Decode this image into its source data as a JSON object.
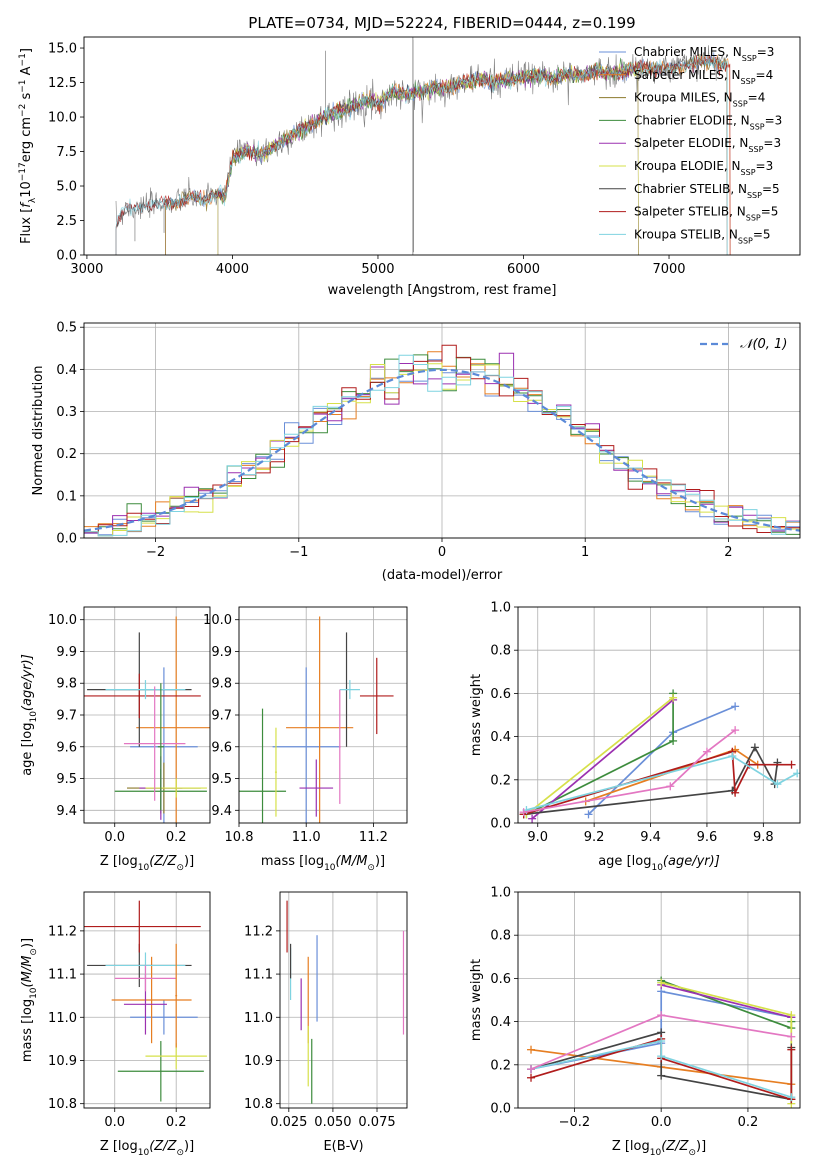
{
  "colors": {
    "Chabrier MILES": "#6a8fd8",
    "Salpeter MILES": "#e67e22",
    "Kroupa MILES": "#8c7a2b",
    "Chabrier ELODIE": "#3d8c3d",
    "Salpeter ELODIE": "#9b30b0",
    "Kroupa ELODIE": "#d6e04a",
    "Chabrier STELIB": "#444444",
    "Salpeter STELIB": "#b01c1c",
    "Kroupa STELIB": "#7fd3e0",
    "pink": "#e377c2",
    "grey": "#7f7f7f",
    "normal": "#5b8ad8"
  },
  "chart_data": [
    {
      "id": "spectrum",
      "type": "line",
      "title": "PLATE=0734, MJD=52224, FIBERID=0444, z=0.199",
      "xlabel": "wavelength [Angstrom, rest frame]",
      "ylabel_parts": [
        "Flux [",
        "f",
        "λ",
        "10",
        "−17",
        "erg cm",
        "−2",
        " s",
        "−1",
        " A",
        "−1",
        "]"
      ],
      "xlim": [
        2980,
        7900
      ],
      "ylim": [
        0,
        15.8
      ],
      "xticks": [
        3000,
        4000,
        5000,
        6000,
        7000
      ],
      "yticks": [
        0.0,
        2.5,
        5.0,
        7.5,
        10.0,
        12.5,
        15.0
      ],
      "legend": {
        "position": "top-right",
        "entries": [
          {
            "name": "Chabrier MILES",
            "nssp": "3"
          },
          {
            "name": "Salpeter MILES",
            "nssp": "4"
          },
          {
            "name": "Kroupa MILES",
            "nssp": "4"
          },
          {
            "name": "Chabrier ELODIE",
            "nssp": "3"
          },
          {
            "name": "Salpeter ELODIE",
            "nssp": "3"
          },
          {
            "name": "Kroupa ELODIE",
            "nssp": "3"
          },
          {
            "name": "Chabrier STELIB",
            "nssp": "5"
          },
          {
            "name": "Salpeter STELIB",
            "nssp": "5"
          },
          {
            "name": "Kroupa STELIB",
            "nssp": "5"
          }
        ]
      },
      "continuum": [
        [
          3200,
          2.2
        ],
        [
          3250,
          3.2
        ],
        [
          3400,
          3.5
        ],
        [
          3500,
          3.8
        ],
        [
          3600,
          3.7
        ],
        [
          3700,
          4.2
        ],
        [
          3800,
          4.0
        ],
        [
          3900,
          4.5
        ],
        [
          3950,
          4.2
        ],
        [
          4000,
          7.0
        ],
        [
          4100,
          7.6
        ],
        [
          4200,
          7.2
        ],
        [
          4300,
          8.0
        ],
        [
          4400,
          8.6
        ],
        [
          4500,
          9.2
        ],
        [
          4600,
          9.8
        ],
        [
          4700,
          10.3
        ],
        [
          4800,
          10.6
        ],
        [
          4900,
          11.2
        ],
        [
          5000,
          11.0
        ],
        [
          5100,
          11.8
        ],
        [
          5200,
          11.6
        ],
        [
          5300,
          11.9
        ],
        [
          5400,
          12.1
        ],
        [
          5500,
          12.2
        ],
        [
          5600,
          12.5
        ],
        [
          5700,
          12.8
        ],
        [
          5800,
          12.5
        ],
        [
          5900,
          12.7
        ],
        [
          6000,
          12.9
        ],
        [
          6100,
          13.0
        ],
        [
          6200,
          12.8
        ],
        [
          6300,
          13.1
        ],
        [
          6400,
          13.0
        ],
        [
          6500,
          13.3
        ],
        [
          6600,
          13.2
        ],
        [
          6700,
          13.4
        ],
        [
          6800,
          13.5
        ],
        [
          6900,
          13.6
        ],
        [
          7000,
          13.4
        ],
        [
          7100,
          13.8
        ],
        [
          7200,
          13.9
        ],
        [
          7300,
          14.0
        ],
        [
          7400,
          13.8
        ]
      ],
      "series_ranges": [
        {
          "name": "Chabrier MILES",
          "x0": 3540,
          "x1": 7400
        },
        {
          "name": "Salpeter MILES",
          "x0": 3540,
          "x1": 7420
        },
        {
          "name": "Kroupa MILES",
          "x0": 3540,
          "x1": 7400
        },
        {
          "name": "Chabrier ELODIE",
          "x0": 3900,
          "x1": 6790
        },
        {
          "name": "Salpeter ELODIE",
          "x0": 3900,
          "x1": 6790
        },
        {
          "name": "Kroupa ELODIE",
          "x0": 3900,
          "x1": 6790
        },
        {
          "name": "Chabrier STELIB",
          "x0": 3200,
          "x1": 7400
        },
        {
          "name": "Salpeter STELIB",
          "x0": 3200,
          "x1": 7420
        },
        {
          "name": "Kroupa STELIB",
          "x0": 3200,
          "x1": 7400
        }
      ]
    },
    {
      "id": "residuals",
      "type": "step-histogram",
      "xlabel": "(data-model)/error",
      "ylabel": "Normed distribution",
      "xlim": [
        -2.5,
        2.5
      ],
      "ylim": [
        0,
        0.51
      ],
      "xticks": [
        -2,
        -1,
        0,
        1,
        2
      ],
      "xtick_labels": [
        "−2",
        "−1",
        "0",
        "1",
        "2"
      ],
      "yticks": [
        0.0,
        0.1,
        0.2,
        0.3,
        0.4,
        0.5
      ],
      "bin_width": 0.1,
      "legend_label": "𝒩(0, 1)",
      "legend_position": "top-right",
      "line_names": [
        "Chabrier MILES",
        "Salpeter MILES",
        "Chabrier ELODIE",
        "Salpeter ELODIE",
        "Kroupa ELODIE",
        "Salpeter STELIB",
        "Kroupa STELIB"
      ],
      "amplitudes": [
        0.47,
        0.49,
        0.42,
        0.49,
        0.46,
        0.43,
        0.44
      ]
    },
    {
      "id": "age_vs_Z",
      "type": "errorbar",
      "xlabel_parts": [
        "Z [log",
        "10",
        "(Z/Z",
        "⊙",
        ")]"
      ],
      "ylabel_parts": [
        "age  [log",
        "10",
        "(age/yr)]"
      ],
      "xlim": [
        -0.1,
        0.31
      ],
      "ylim": [
        9.36,
        10.04
      ],
      "xticks": [
        0.0,
        0.2
      ],
      "yticks": [
        9.4,
        9.5,
        9.6,
        9.7,
        9.8,
        9.9,
        10.0
      ],
      "points": [
        {
          "c": "Chabrier MILES",
          "x": 0.16,
          "y": 9.6,
          "xe": 0.11,
          "ye": 0.25
        },
        {
          "c": "Salpeter MILES",
          "x": 0.2,
          "y": 9.66,
          "xe": 0.13,
          "ye": 0.35
        },
        {
          "c": "Kroupa MILES",
          "x": 0.16,
          "y": 9.47,
          "xe": 0.12,
          "ye": 0.08
        },
        {
          "c": "Chabrier ELODIE",
          "x": 0.15,
          "y": 9.46,
          "xe": 0.15,
          "ye": 0.07
        },
        {
          "c": "Salpeter ELODIE",
          "x": 0.15,
          "y": 9.47,
          "xe": 0.07,
          "ye": 0.1
        },
        {
          "c": "Kroupa ELODIE",
          "x": 0.2,
          "y": 9.47,
          "xe": 0.1,
          "ye": 0.03
        },
        {
          "c": "Chabrier STELIB",
          "x": 0.08,
          "y": 9.78,
          "xe": 0.17,
          "ye": 0.18
        },
        {
          "c": "Salpeter STELIB",
          "x": 0.08,
          "y": 9.76,
          "xe": 0.2,
          "ye": 0.07
        },
        {
          "c": "Kroupa STELIB",
          "x": 0.1,
          "y": 9.78,
          "xe": 0.13,
          "ye": 0.03
        },
        {
          "c": "pink",
          "x": 0.13,
          "y": 9.61,
          "xe": 0.1,
          "ye": 0.18
        },
        {
          "c": "Chabrier ELODIE",
          "x": 0.15,
          "y": 9.6,
          "xe": 0.01,
          "ye": 0.2
        }
      ]
    },
    {
      "id": "age_vs_mass",
      "type": "errorbar",
      "xlabel_parts": [
        "mass [log",
        "10",
        "(M/M",
        "⊙",
        ")]"
      ],
      "xlim": [
        10.8,
        11.3
      ],
      "ylim": [
        9.36,
        10.04
      ],
      "xticks": [
        10.8,
        11.0,
        11.2
      ],
      "yticks": [
        9.4,
        9.5,
        9.6,
        9.7,
        9.8,
        9.9,
        10.0
      ],
      "points": [
        {
          "c": "Chabrier MILES",
          "x": 11.0,
          "y": 9.6,
          "xe": 0.1,
          "ye": 0.25
        },
        {
          "c": "Salpeter MILES",
          "x": 11.04,
          "y": 9.66,
          "xe": 0.1,
          "ye": 0.35
        },
        {
          "c": "Chabrier ELODIE",
          "x": 10.87,
          "y": 9.46,
          "xe": 0.07,
          "ye": 0.26
        },
        {
          "c": "Salpeter ELODIE",
          "x": 11.03,
          "y": 9.47,
          "xe": 0.05,
          "ye": 0.09
        },
        {
          "c": "Kroupa ELODIE",
          "x": 10.91,
          "y": 9.52,
          "xe": 0.003,
          "ye": 0.14
        },
        {
          "c": "Chabrier STELIB",
          "x": 11.12,
          "y": 9.78,
          "xe": 0.003,
          "ye": 0.18
        },
        {
          "c": "Salpeter STELIB",
          "x": 11.21,
          "y": 9.76,
          "xe": 0.05,
          "ye": 0.12
        },
        {
          "c": "Kroupa STELIB",
          "x": 11.13,
          "y": 9.78,
          "xe": 0.03,
          "ye": 0.03
        },
        {
          "c": "pink",
          "x": 11.1,
          "y": 9.6,
          "xe": 0.003,
          "ye": 0.18
        }
      ]
    },
    {
      "id": "massweight_vs_age",
      "type": "line",
      "xlabel_parts": [
        "age  [log",
        "10",
        "(age/yr)]"
      ],
      "ylabel": "mass weight",
      "xlim": [
        8.93,
        9.93
      ],
      "ylim": [
        0,
        1.0
      ],
      "xticks": [
        9.0,
        9.2,
        9.4,
        9.6,
        9.8
      ],
      "yticks": [
        0.0,
        0.2,
        0.4,
        0.6,
        0.8,
        1.0
      ],
      "series": [
        {
          "c": "Chabrier MILES",
          "x": [
            9.18,
            9.48,
            9.7
          ],
          "y": [
            0.04,
            0.42,
            0.54
          ]
        },
        {
          "c": "Salpeter MILES",
          "x": [
            9.17,
            9.7,
            9.78
          ],
          "y": [
            0.1,
            0.34,
            0.27
          ]
        },
        {
          "c": "Chabrier ELODIE",
          "x": [
            8.96,
            9.48,
            9.48
          ],
          "y": [
            0.04,
            0.38,
            0.6
          ]
        },
        {
          "c": "Salpeter ELODIE",
          "x": [
            8.98,
            9.48
          ],
          "y": [
            0.02,
            0.57
          ]
        },
        {
          "c": "Kroupa ELODIE",
          "x": [
            8.96,
            9.48
          ],
          "y": [
            0.04,
            0.58
          ]
        },
        {
          "c": "Chabrier STELIB",
          "x": [
            8.95,
            9.69,
            9.77,
            9.84,
            9.85
          ],
          "y": [
            0.04,
            0.15,
            0.35,
            0.18,
            0.28
          ]
        },
        {
          "c": "Salpeter STELIB",
          "x": [
            8.95,
            9.69,
            9.7,
            9.75,
            9.9
          ],
          "y": [
            0.04,
            0.33,
            0.14,
            0.27,
            0.27
          ]
        },
        {
          "c": "Kroupa STELIB",
          "x": [
            8.96,
            9.69,
            9.85,
            9.92
          ],
          "y": [
            0.06,
            0.31,
            0.18,
            0.23
          ]
        },
        {
          "c": "pink",
          "x": [
            8.95,
            9.47,
            9.6,
            9.7
          ],
          "y": [
            0.05,
            0.17,
            0.33,
            0.43
          ]
        }
      ]
    },
    {
      "id": "mass_vs_Z",
      "type": "errorbar",
      "xlabel_parts": [
        "Z [log",
        "10",
        "(Z/Z",
        "⊙",
        ")]"
      ],
      "ylabel_parts": [
        "mass [log",
        "10",
        "(M/M",
        "⊙",
        ")]"
      ],
      "xlim": [
        -0.1,
        0.31
      ],
      "ylim": [
        10.79,
        11.29
      ],
      "xticks": [
        0.0,
        0.2
      ],
      "yticks": [
        10.8,
        10.9,
        11.0,
        11.1,
        11.2
      ],
      "points": [
        {
          "c": "Chabrier MILES",
          "x": 0.16,
          "y": 11.0,
          "xe": 0.11,
          "ye": 0.04
        },
        {
          "c": "Salpeter MILES",
          "x": 0.12,
          "y": 11.04,
          "xe": 0.13,
          "ye": 0.1
        },
        {
          "c": "Chabrier ELODIE",
          "x": 0.15,
          "y": 10.875,
          "xe": 0.14,
          "ye": 0.07
        },
        {
          "c": "Salpeter ELODIE",
          "x": 0.1,
          "y": 11.03,
          "xe": 0.07,
          "ye": 0.07
        },
        {
          "c": "Kroupa ELODIE",
          "x": 0.2,
          "y": 10.91,
          "xe": 0.1,
          "ye": 0.03
        },
        {
          "c": "Chabrier STELIB",
          "x": 0.08,
          "y": 11.12,
          "xe": 0.17,
          "ye": 0.05
        },
        {
          "c": "Salpeter STELIB",
          "x": 0.08,
          "y": 11.21,
          "xe": 0.2,
          "ye": 0.06
        },
        {
          "c": "Kroupa STELIB",
          "x": 0.1,
          "y": 11.12,
          "xe": 0.13,
          "ye": 0.03
        },
        {
          "c": "pink",
          "x": 0.1,
          "y": 11.09,
          "xe": 0.1,
          "ye": 0.03
        },
        {
          "c": "Salpeter MILES",
          "x": 0.2,
          "y": 11.05,
          "xe": 0.003,
          "ye": 0.12
        }
      ]
    },
    {
      "id": "mass_vs_ebv",
      "type": "errorbar",
      "xlabel": "E(B-V)",
      "xlim": [
        0.02,
        0.092
      ],
      "ylim": [
        10.79,
        11.29
      ],
      "xticks": [
        0.025,
        0.05,
        0.075
      ],
      "xtick_labels": [
        "0.025",
        "0.050",
        "0.075"
      ],
      "yticks": [
        10.8,
        10.9,
        11.0,
        11.1,
        11.2
      ],
      "points": [
        {
          "c": "Chabrier MILES",
          "x": 0.041,
          "y": 11.09,
          "ye": 0.1
        },
        {
          "c": "Salpeter MILES",
          "x": 0.036,
          "y": 11.04,
          "ye": 0.1
        },
        {
          "c": "Chabrier ELODIE",
          "x": 0.038,
          "y": 10.875,
          "ye": 0.075
        },
        {
          "c": "Salpeter ELODIE",
          "x": 0.032,
          "y": 11.03,
          "ye": 0.06
        },
        {
          "c": "Kroupa ELODIE",
          "x": 0.036,
          "y": 10.91,
          "ye": 0.07
        },
        {
          "c": "Salpeter STELIB",
          "x": 0.024,
          "y": 11.21,
          "ye": 0.06
        },
        {
          "c": "Kroupa STELIB",
          "x": 0.026,
          "y": 11.1,
          "ye": 0.06
        },
        {
          "c": "pink",
          "x": 0.09,
          "y": 11.08,
          "ye": 0.12
        },
        {
          "c": "Chabrier STELIB",
          "x": 0.026,
          "y": 11.13,
          "ye": 0.04
        }
      ]
    },
    {
      "id": "massweight_vs_Z",
      "type": "line",
      "xlabel_parts": [
        "Z [log",
        "10",
        "(Z/Z",
        "⊙",
        ")]"
      ],
      "ylabel": "mass weight",
      "xlim": [
        -0.33,
        0.32
      ],
      "ylim": [
        0,
        1.0
      ],
      "xticks": [
        -0.2,
        0.0,
        0.2
      ],
      "xtick_labels": [
        "−0.2",
        "0.0",
        "0.2"
      ],
      "yticks": [
        0.0,
        0.2,
        0.4,
        0.6,
        0.8,
        1.0
      ],
      "series": [
        {
          "c": "Chabrier MILES",
          "x": [
            -0.3,
            0.0,
            0.0,
            0.3
          ],
          "y": [
            0.18,
            0.3,
            0.54,
            0.42
          ]
        },
        {
          "c": "Salpeter MILES",
          "x": [
            -0.3,
            0.0,
            0.3
          ],
          "y": [
            0.27,
            0.19,
            0.11
          ]
        },
        {
          "c": "Chabrier ELODIE",
          "x": [
            0.0,
            0.3,
            0.3
          ],
          "y": [
            0.59,
            0.37,
            0.4
          ]
        },
        {
          "c": "Salpeter ELODIE",
          "x": [
            0.0,
            0.3
          ],
          "y": [
            0.57,
            0.42
          ]
        },
        {
          "c": "Kroupa ELODIE",
          "x": [
            0.0,
            0.3,
            0.3
          ],
          "y": [
            0.58,
            0.43,
            0.02
          ]
        },
        {
          "c": "Chabrier STELIB",
          "x": [
            -0.3,
            0.0,
            0.0,
            0.3,
            0.3
          ],
          "y": [
            0.18,
            0.35,
            0.15,
            0.04,
            0.28
          ]
        },
        {
          "c": "Salpeter STELIB",
          "x": [
            -0.3,
            0.0,
            0.0,
            0.3,
            0.3
          ],
          "y": [
            0.14,
            0.32,
            0.23,
            0.04,
            0.27
          ]
        },
        {
          "c": "Kroupa STELIB",
          "x": [
            -0.3,
            0.0,
            0.0,
            0.3
          ],
          "y": [
            0.18,
            0.31,
            0.24,
            0.05
          ]
        },
        {
          "c": "pink",
          "x": [
            -0.3,
            0.0,
            0.3
          ],
          "y": [
            0.18,
            0.43,
            0.33
          ]
        }
      ]
    }
  ]
}
